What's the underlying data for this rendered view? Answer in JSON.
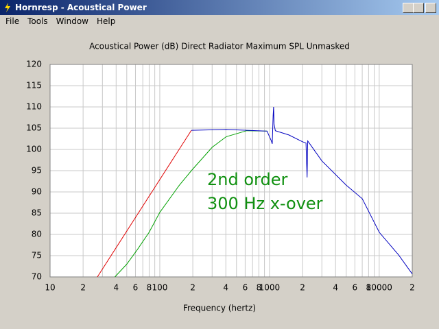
{
  "window": {
    "title": "Hornresp - Acoustical Power",
    "menu": [
      "File",
      "Tools",
      "Window",
      "Help"
    ]
  },
  "chart_data": {
    "type": "line",
    "title": "Acoustical Power (dB)   Direct Radiator   Maximum SPL   Unmasked",
    "x_label": "Frequency (hertz)",
    "log_x": true,
    "grid": true,
    "xlim": [
      10,
      20000
    ],
    "ylim": [
      70,
      120
    ],
    "xticks": [
      {
        "value": 10,
        "label": "10"
      },
      {
        "value": 20,
        "label": "2"
      },
      {
        "value": 40,
        "label": "4"
      },
      {
        "value": 60,
        "label": "6"
      },
      {
        "value": 80,
        "label": "8"
      },
      {
        "value": 100,
        "label": "100"
      },
      {
        "value": 200,
        "label": "2"
      },
      {
        "value": 400,
        "label": "4"
      },
      {
        "value": 600,
        "label": "6"
      },
      {
        "value": 800,
        "label": "8"
      },
      {
        "value": 1000,
        "label": "1000"
      },
      {
        "value": 2000,
        "label": "2"
      },
      {
        "value": 4000,
        "label": "4"
      },
      {
        "value": 6000,
        "label": "6"
      },
      {
        "value": 8000,
        "label": "8"
      },
      {
        "value": 10000,
        "label": "10000"
      },
      {
        "value": 20000,
        "label": "2"
      }
    ],
    "xgrid_minor": [
      30,
      50,
      70,
      90,
      300,
      500,
      700,
      900,
      3000,
      5000,
      7000,
      9000
    ],
    "yticks": [
      70,
      75,
      80,
      85,
      90,
      95,
      100,
      105,
      110,
      115,
      120
    ],
    "series": [
      {
        "color": "#e00000",
        "x": [
          27,
          194
        ],
        "values": [
          70,
          104.5
        ]
      },
      {
        "color": "#00a000",
        "x": [
          39,
          50,
          62,
          80,
          100,
          150,
          194,
          300,
          404,
          620,
          950
        ],
        "values": [
          70,
          73,
          76.3,
          80.5,
          85.2,
          91.5,
          95,
          100.5,
          103,
          104.4,
          104.3
        ]
      },
      {
        "color": "#0000c0",
        "x": [
          194,
          404,
          950,
          1040,
          1060,
          1080,
          1090,
          1100,
          1130,
          1500,
          2000,
          2150,
          2200,
          2230,
          2300,
          3000,
          5000,
          7000,
          10000,
          15000,
          20000
        ],
        "values": [
          104.5,
          104.7,
          104.3,
          102,
          101.3,
          108,
          110,
          106,
          104.4,
          103.4,
          101.8,
          101.5,
          93.4,
          102,
          101.5,
          97.3,
          91.6,
          88.4,
          80.5,
          75.2,
          70.7
        ]
      }
    ],
    "annotations": [
      {
        "text": "2nd order"
      },
      {
        "text": "300 Hz x-over"
      }
    ],
    "annotation_color": "#109010"
  }
}
